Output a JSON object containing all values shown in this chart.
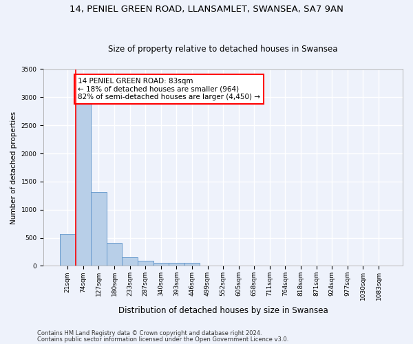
{
  "title1": "14, PENIEL GREEN ROAD, LLANSAMLET, SWANSEA, SA7 9AN",
  "title2": "Size of property relative to detached houses in Swansea",
  "xlabel": "Distribution of detached houses by size in Swansea",
  "ylabel": "Number of detached properties",
  "categories": [
    "21sqm",
    "74sqm",
    "127sqm",
    "180sqm",
    "233sqm",
    "287sqm",
    "340sqm",
    "393sqm",
    "446sqm",
    "499sqm",
    "552sqm",
    "605sqm",
    "658sqm",
    "711sqm",
    "764sqm",
    "818sqm",
    "871sqm",
    "924sqm",
    "977sqm",
    "1030sqm",
    "1083sqm"
  ],
  "values": [
    570,
    2900,
    1320,
    410,
    155,
    85,
    60,
    55,
    50,
    0,
    0,
    0,
    0,
    0,
    0,
    0,
    0,
    0,
    0,
    0,
    0
  ],
  "bar_color": "#b8cfe8",
  "bar_edge_color": "#6699cc",
  "vline_x": 0.5,
  "vline_color": "red",
  "annotation_text": "14 PENIEL GREEN ROAD: 83sqm\n← 18% of detached houses are smaller (964)\n82% of semi-detached houses are larger (4,450) →",
  "annotation_box_color": "white",
  "annotation_box_edge_color": "red",
  "ylim": [
    0,
    3500
  ],
  "yticks": [
    0,
    500,
    1000,
    1500,
    2000,
    2500,
    3000,
    3500
  ],
  "footer1": "Contains HM Land Registry data © Crown copyright and database right 2024.",
  "footer2": "Contains public sector information licensed under the Open Government Licence v3.0.",
  "bg_color": "#eef2fb",
  "grid_color": "#ffffff",
  "title1_fontsize": 9.5,
  "title2_fontsize": 8.5,
  "xlabel_fontsize": 8.5,
  "ylabel_fontsize": 7.5,
  "footer_fontsize": 6.0,
  "tick_fontsize": 6.5,
  "annot_fontsize": 7.5
}
